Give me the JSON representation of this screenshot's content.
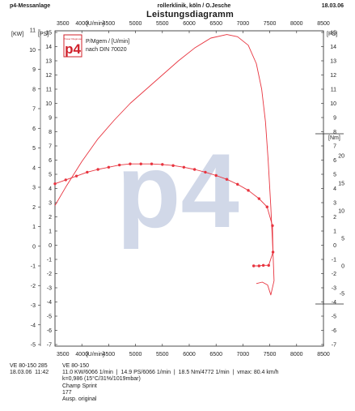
{
  "header": {
    "system": "p4-Messanlage",
    "workshop": "rollerklinik, köln / O.Jesche",
    "date": "18.03.06",
    "title": "Leistungsdiagramm"
  },
  "logo": {
    "text": "p4",
    "small": "Power Diagnose"
  },
  "legend": {
    "line1": "P/Mgem / [U/min]",
    "line2": "nach DIN 70020"
  },
  "watermark": "p4",
  "footer": {
    "left": [
      "VE 80-150 285",
      "18.03.06  11:42"
    ],
    "right": [
      "VE 80-150",
      "11.0 KW/6066 1/min  |  14.9 PS/6066 1/min  |  18.5 Nm/4772 1/min  |  vmax: 80.4 km/h",
      "k=0,986 (15°C/31%/1019mbar)",
      "Champ Sprint",
      "177",
      "Ausp. original"
    ]
  },
  "chart_data": {
    "type": "line",
    "xlim": [
      3500,
      8500
    ],
    "x_ticks": [
      3500,
      4000,
      4500,
      5000,
      5500,
      6000,
      6500,
      7000,
      7500,
      8000,
      8500
    ],
    "x_unit_label": "[U/min]",
    "axes": {
      "kw": {
        "label": "[KW]",
        "lim": [
          -5,
          11
        ],
        "ticks": [
          -5,
          -4,
          -3,
          -2,
          -1,
          0,
          1,
          2,
          3,
          4,
          5,
          6,
          7,
          8,
          9,
          10,
          11
        ]
      },
      "ps": {
        "label": "[PS]",
        "lim": [
          -7,
          15
        ],
        "ticks": [
          -7,
          -6,
          -5,
          -4,
          -3,
          -2,
          -1,
          0,
          1,
          2,
          3,
          4,
          5,
          6,
          7,
          8,
          9,
          10,
          11,
          12,
          13,
          14,
          15
        ]
      },
      "nm": {
        "label": "[Nm]",
        "lim": [
          -7,
          23
        ],
        "ticks": [
          -5,
          0,
          5,
          10,
          15,
          20
        ]
      }
    },
    "grid": false,
    "series": [
      {
        "name": "P [PS]",
        "axis": "ps",
        "color": "#e8343f",
        "markers": false,
        "points": [
          [
            3500,
            2.8
          ],
          [
            3700,
            4.1
          ],
          [
            4000,
            5.9
          ],
          [
            4300,
            7.5
          ],
          [
            4600,
            8.8
          ],
          [
            4900,
            10.0
          ],
          [
            5200,
            11.0
          ],
          [
            5500,
            12.0
          ],
          [
            5800,
            13.0
          ],
          [
            6100,
            13.9
          ],
          [
            6400,
            14.6
          ],
          [
            6700,
            14.85
          ],
          [
            6900,
            14.7
          ],
          [
            7100,
            14.1
          ],
          [
            7250,
            12.8
          ],
          [
            7350,
            11.0
          ],
          [
            7420,
            8.7
          ],
          [
            7470,
            6.0
          ],
          [
            7520,
            2.7
          ],
          [
            7560,
            -0.5
          ],
          [
            7580,
            -2.5
          ],
          [
            7520,
            -3.5
          ],
          [
            7460,
            -2.8
          ],
          [
            7360,
            -2.6
          ],
          [
            7250,
            -2.7
          ]
        ]
      },
      {
        "name": "M [Nm]",
        "axis": "nm",
        "color": "#e8343f",
        "markers": true,
        "points": [
          [
            3500,
            14.9
          ],
          [
            3700,
            15.6
          ],
          [
            3900,
            16.3
          ],
          [
            4100,
            17.0
          ],
          [
            4300,
            17.5
          ],
          [
            4500,
            17.9
          ],
          [
            4700,
            18.3
          ],
          [
            4900,
            18.5
          ],
          [
            5100,
            18.5
          ],
          [
            5300,
            18.5
          ],
          [
            5500,
            18.4
          ],
          [
            5700,
            18.2
          ],
          [
            5900,
            17.9
          ],
          [
            6100,
            17.5
          ],
          [
            6300,
            17.0
          ],
          [
            6500,
            16.4
          ],
          [
            6700,
            15.7
          ],
          [
            6900,
            14.8
          ],
          [
            7100,
            13.7
          ],
          [
            7300,
            12.2
          ],
          [
            7450,
            10.7
          ],
          [
            7550,
            7.3
          ],
          [
            7560,
            2.5
          ],
          [
            7480,
            0.1
          ],
          [
            7380,
            0.1
          ],
          [
            7300,
            0.0
          ],
          [
            7200,
            0.0
          ]
        ]
      }
    ]
  }
}
